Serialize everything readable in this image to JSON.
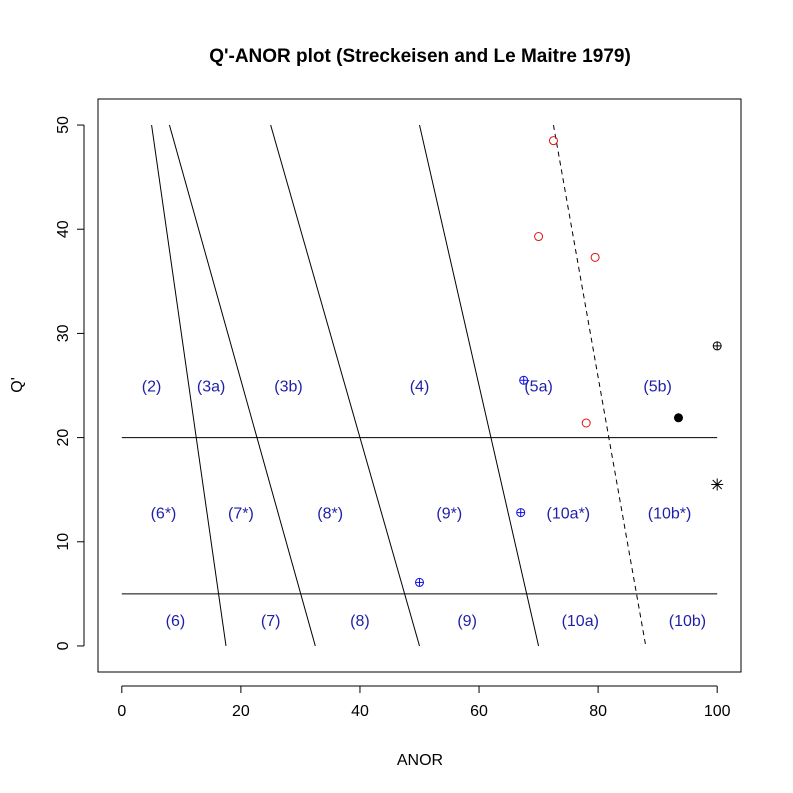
{
  "chart_data": {
    "type": "scatter",
    "title": "Q'-ANOR plot (Streckeisen and Le Maitre 1979)",
    "xlabel": "ANOR",
    "ylabel": "Q'",
    "xlim": [
      -4,
      104
    ],
    "ylim": [
      -2.5,
      52.5
    ],
    "x_ticks": [
      0,
      20,
      40,
      60,
      80,
      100
    ],
    "y_ticks": [
      0,
      10,
      20,
      30,
      40,
      50
    ],
    "grid": false,
    "label_color": "#1f1fa8",
    "boundaries": [
      {
        "points": [
          [
            5,
            50
          ],
          [
            17.5,
            0
          ]
        ],
        "style": "solid"
      },
      {
        "points": [
          [
            8,
            50
          ],
          [
            32.5,
            0
          ]
        ],
        "style": "solid"
      },
      {
        "points": [
          [
            25,
            50
          ],
          [
            50,
            0
          ]
        ],
        "style": "solid"
      },
      {
        "points": [
          [
            50,
            50
          ],
          [
            70,
            0
          ]
        ],
        "style": "solid"
      },
      {
        "points": [
          [
            72.5,
            50
          ],
          [
            88,
            0
          ]
        ],
        "style": "dashed"
      },
      {
        "points": [
          [
            0,
            20
          ],
          [
            100,
            20
          ]
        ],
        "style": "solid"
      },
      {
        "points": [
          [
            0,
            5
          ],
          [
            100,
            5
          ]
        ],
        "style": "solid"
      }
    ],
    "field_labels": [
      {
        "text": "(2)",
        "x": 5,
        "y": 25
      },
      {
        "text": "(3a)",
        "x": 15,
        "y": 25
      },
      {
        "text": "(3b)",
        "x": 28,
        "y": 25
      },
      {
        "text": "(4)",
        "x": 50,
        "y": 25
      },
      {
        "text": "(5a)",
        "x": 70,
        "y": 25
      },
      {
        "text": "(5b)",
        "x": 90,
        "y": 25
      },
      {
        "text": "(6*)",
        "x": 7,
        "y": 12.8
      },
      {
        "text": "(7*)",
        "x": 20,
        "y": 12.8
      },
      {
        "text": "(8*)",
        "x": 35,
        "y": 12.8
      },
      {
        "text": "(9*)",
        "x": 55,
        "y": 12.8
      },
      {
        "text": "(10a*)",
        "x": 75,
        "y": 12.8
      },
      {
        "text": "(10b*)",
        "x": 92,
        "y": 12.8
      },
      {
        "text": "(6)",
        "x": 9,
        "y": 2.5
      },
      {
        "text": "(7)",
        "x": 25,
        "y": 2.5
      },
      {
        "text": "(8)",
        "x": 40,
        "y": 2.5
      },
      {
        "text": "(9)",
        "x": 58,
        "y": 2.5
      },
      {
        "text": "(10a)",
        "x": 77,
        "y": 2.5
      },
      {
        "text": "(10b)",
        "x": 95,
        "y": 2.5
      }
    ],
    "series": [
      {
        "marker": "circle-open",
        "color": "#e01010",
        "x": [
          72.5,
          70,
          79.5,
          78
        ],
        "y": [
          48.5,
          39.3,
          37.3,
          21.4
        ]
      },
      {
        "marker": "circle-plus",
        "color": "#1010e0",
        "x": [
          67.5,
          67,
          50
        ],
        "y": [
          25.5,
          12.8,
          6.1
        ]
      },
      {
        "marker": "circle-plus",
        "color": "#000000",
        "x": [
          100
        ],
        "y": [
          28.8
        ]
      },
      {
        "marker": "circle-filled",
        "color": "#000000",
        "x": [
          93.5
        ],
        "y": [
          21.9
        ]
      },
      {
        "marker": "asterisk",
        "color": "#000000",
        "x": [
          100
        ],
        "y": [
          15.5
        ]
      }
    ]
  }
}
